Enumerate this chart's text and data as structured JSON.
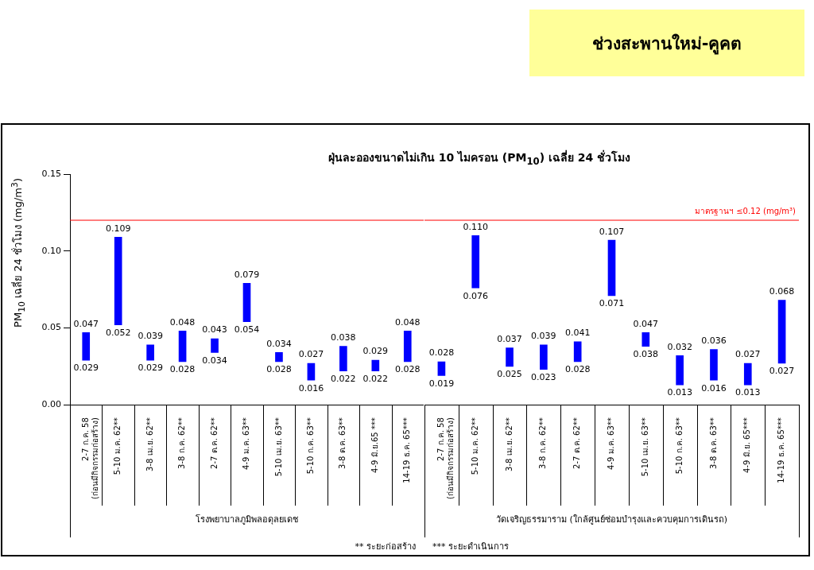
{
  "chart_data": [
    {
      "type": "bar",
      "title": "ฝุ่นละอองขนาดไม่เกิน 10 ไมครอน (PM$_{10}$) เฉลี่ย 24 ชั่วโมง",
      "ylabel": "PM$_{10}$ เฉลี่ย 24 ชั่วโมง (mg/m$^{3}$)",
      "xlabel": "โรงพยาบาลภูมิพลอดุลยเดช",
      "categories": [
        "2-7 ก.ค. 58\n(ก่อนมีกิจกรรมก่อสร้าง)",
        "5-10 ม.ค. 62**",
        "3-8 เม.ย. 62**",
        "3-8 ก.ค. 62**",
        "2-7 ต.ค. 62**",
        "4-9 ม.ค. 63**",
        "5-10 เม.ย. 63**",
        "5-10 ก.ค. 63**",
        "3-8 ต.ค. 63**",
        "4-9 มิ.ย.65 ***",
        "14-19 ธ.ค. 65***"
      ],
      "base": [
        0.029,
        0.052,
        0.029,
        0.028,
        0.034,
        0.054,
        0.028,
        0.016,
        0.022,
        0.022,
        0.028
      ],
      "values": [
        0.018,
        0.057,
        0.01,
        0.02,
        0.009,
        0.025,
        0.006,
        0.011,
        0.016,
        0.007,
        0.02
      ],
      "color": "#0000ff",
      "ylim": [
        0,
        0.15
      ],
      "yticks": [
        {
          "value": 0,
          "label": "0.00"
        },
        {
          "value": 0.05,
          "label": "0.05"
        },
        {
          "value": 0.1,
          "label": "0.10"
        },
        {
          "value": 0.15,
          "label": "0.15"
        }
      ],
      "ref_lines": [
        {
          "axis": "y",
          "value": 0.12,
          "color": "#ff0000"
        }
      ],
      "annotations": [
        {
          "text": "0.047",
          "x": "2-7 ก.ค. 58\n(ก่อนมีกิจกรรมก่อสร้าง)",
          "y": 0.047
        },
        {
          "text": "0.029",
          "x": "2-7 ก.ค. 58\n(ก่อนมีกิจกรรมก่อสร้าง)",
          "y": 0.029
        },
        {
          "text": "0.109",
          "x": "5-10 ม.ค. 62**",
          "y": 0.109
        },
        {
          "text": "0.052",
          "x": "5-10 ม.ค. 62**",
          "y": 0.052
        },
        {
          "text": "0.039",
          "x": "3-8 เม.ย. 62**",
          "y": 0.039
        },
        {
          "text": "0.029",
          "x": "3-8 เม.ย. 62**",
          "y": 0.029
        },
        {
          "text": "0.048",
          "x": "3-8 ก.ค. 62**",
          "y": 0.048
        },
        {
          "text": "0.028",
          "x": "3-8 ก.ค. 62**",
          "y": 0.028
        },
        {
          "text": "0.043",
          "x": "2-7 ต.ค. 62**",
          "y": 0.043
        },
        {
          "text": "0.034",
          "x": "2-7 ต.ค. 62**",
          "y": 0.034
        },
        {
          "text": "0.079",
          "x": "4-9 ม.ค. 63**",
          "y": 0.079
        },
        {
          "text": "0.054",
          "x": "4-9 ม.ค. 63**",
          "y": 0.054
        },
        {
          "text": "0.034",
          "x": "5-10 เม.ย. 63**",
          "y": 0.034
        },
        {
          "text": "0.028",
          "x": "5-10 เม.ย. 63**",
          "y": 0.028
        },
        {
          "text": "0.027",
          "x": "5-10 ก.ค. 63**",
          "y": 0.027
        },
        {
          "text": "0.016",
          "x": "5-10 ก.ค. 63**",
          "y": 0.016
        },
        {
          "text": "0.038",
          "x": "3-8 ต.ค. 63**",
          "y": 0.038
        },
        {
          "text": "0.022",
          "x": "3-8 ต.ค. 63**",
          "y": 0.022
        },
        {
          "text": "0.029",
          "x": "4-9 มิ.ย.65 ***",
          "y": 0.029
        },
        {
          "text": "0.022",
          "x": "4-9 มิ.ย.65 ***",
          "y": 0.022
        },
        {
          "text": "0.048",
          "x": "14-19 ธ.ค. 65***",
          "y": 0.048
        },
        {
          "text": "0.028",
          "x": "14-19 ธ.ค. 65***",
          "y": 0.028
        },
        "** ระยะก่อสร้าง"
      ]
    },
    {
      "type": "bar",
      "subtitle": "ช่วงสะพานใหม่-คูคต",
      "xlabel": "วัดเจริญธรรมาราม (ใกล้ศูนย์ซ่อมบำรุงและควบคุมการเดินรถ)",
      "tick_labels": "x",
      "categories": [
        "2-7 ก.ค. 58\n(ก่อนมีกิจกรรมก่อสร้าง)",
        "5-10 ม.ค. 62**",
        "3-8 เม.ย. 62**",
        "3-8 ก.ค. 62**",
        "2-7 ต.ค. 62**",
        "4-9 ม.ค. 63**",
        "5-10 เม.ย. 63**",
        "5-10 ก.ค. 63**",
        "3-8 ต.ค. 63**",
        "4-9 มิ.ย. 65***",
        "14-19 ธ.ค. 65***"
      ],
      "base": [
        0.019,
        0.076,
        0.025,
        0.023,
        0.028,
        0.071,
        0.038,
        0.013,
        0.016,
        0.013,
        0.027
      ],
      "values": [
        0.009,
        0.034,
        0.012,
        0.016,
        0.013,
        0.036,
        0.009,
        0.019,
        0.02,
        0.014,
        0.041
      ],
      "color": "#0000ff",
      "ylim": [
        0,
        0.15
      ],
      "ref_lines": [
        {
          "axis": "y",
          "value": 0.12,
          "label": "มาตรฐานฯ ≤0.12 (mg/m³)",
          "color": "#ff0000"
        }
      ],
      "annotations": [
        {
          "text": "0.028",
          "x": "2-7 ก.ค. 58\n(ก่อนมีกิจกรรมก่อสร้าง)",
          "y": 0.028
        },
        {
          "text": "0.019",
          "x": "2-7 ก.ค. 58\n(ก่อนมีกิจกรรมก่อสร้าง)",
          "y": 0.019
        },
        {
          "text": "0.110",
          "x": "5-10 ม.ค. 62**",
          "y": 0.11
        },
        {
          "text": "0.076",
          "x": "5-10 ม.ค. 62**",
          "y": 0.076
        },
        {
          "text": "0.037",
          "x": "3-8 เม.ย. 62**",
          "y": 0.037
        },
        {
          "text": "0.025",
          "x": "3-8 เม.ย. 62**",
          "y": 0.025
        },
        {
          "text": "0.039",
          "x": "3-8 ก.ค. 62**",
          "y": 0.039
        },
        {
          "text": "0.023",
          "x": "3-8 ก.ค. 62**",
          "y": 0.023
        },
        {
          "text": "0.041",
          "x": "2-7 ต.ค. 62**",
          "y": 0.041
        },
        {
          "text": "0.028",
          "x": "2-7 ต.ค. 62**",
          "y": 0.028
        },
        {
          "text": "0.107",
          "x": "4-9 ม.ค. 63**",
          "y": 0.107
        },
        {
          "text": "0.071",
          "x": "4-9 ม.ค. 63**",
          "y": 0.071
        },
        {
          "text": "0.047",
          "x": "5-10 เม.ย. 63**",
          "y": 0.047
        },
        {
          "text": "0.038",
          "x": "5-10 เม.ย. 63**",
          "y": 0.038
        },
        {
          "text": "0.032",
          "x": "5-10 ก.ค. 63**",
          "y": 0.032
        },
        {
          "text": "0.013",
          "x": "5-10 ก.ค. 63**",
          "y": 0.013
        },
        {
          "text": "0.036",
          "x": "3-8 ต.ค. 63**",
          "y": 0.036
        },
        {
          "text": "0.016",
          "x": "3-8 ต.ค. 63**",
          "y": 0.016
        },
        {
          "text": "0.027",
          "x": "4-9 มิ.ย. 65***",
          "y": 0.027
        },
        {
          "text": "0.013",
          "x": "4-9 มิ.ย. 65***",
          "y": 0.013
        },
        {
          "text": "0.068",
          "x": "14-19 ธ.ค. 65***",
          "y": 0.068
        },
        {
          "text": "0.027",
          "x": "14-19 ธ.ค. 65***",
          "y": 0.027
        },
        "*** ระยะดำเนินการ"
      ]
    }
  ]
}
